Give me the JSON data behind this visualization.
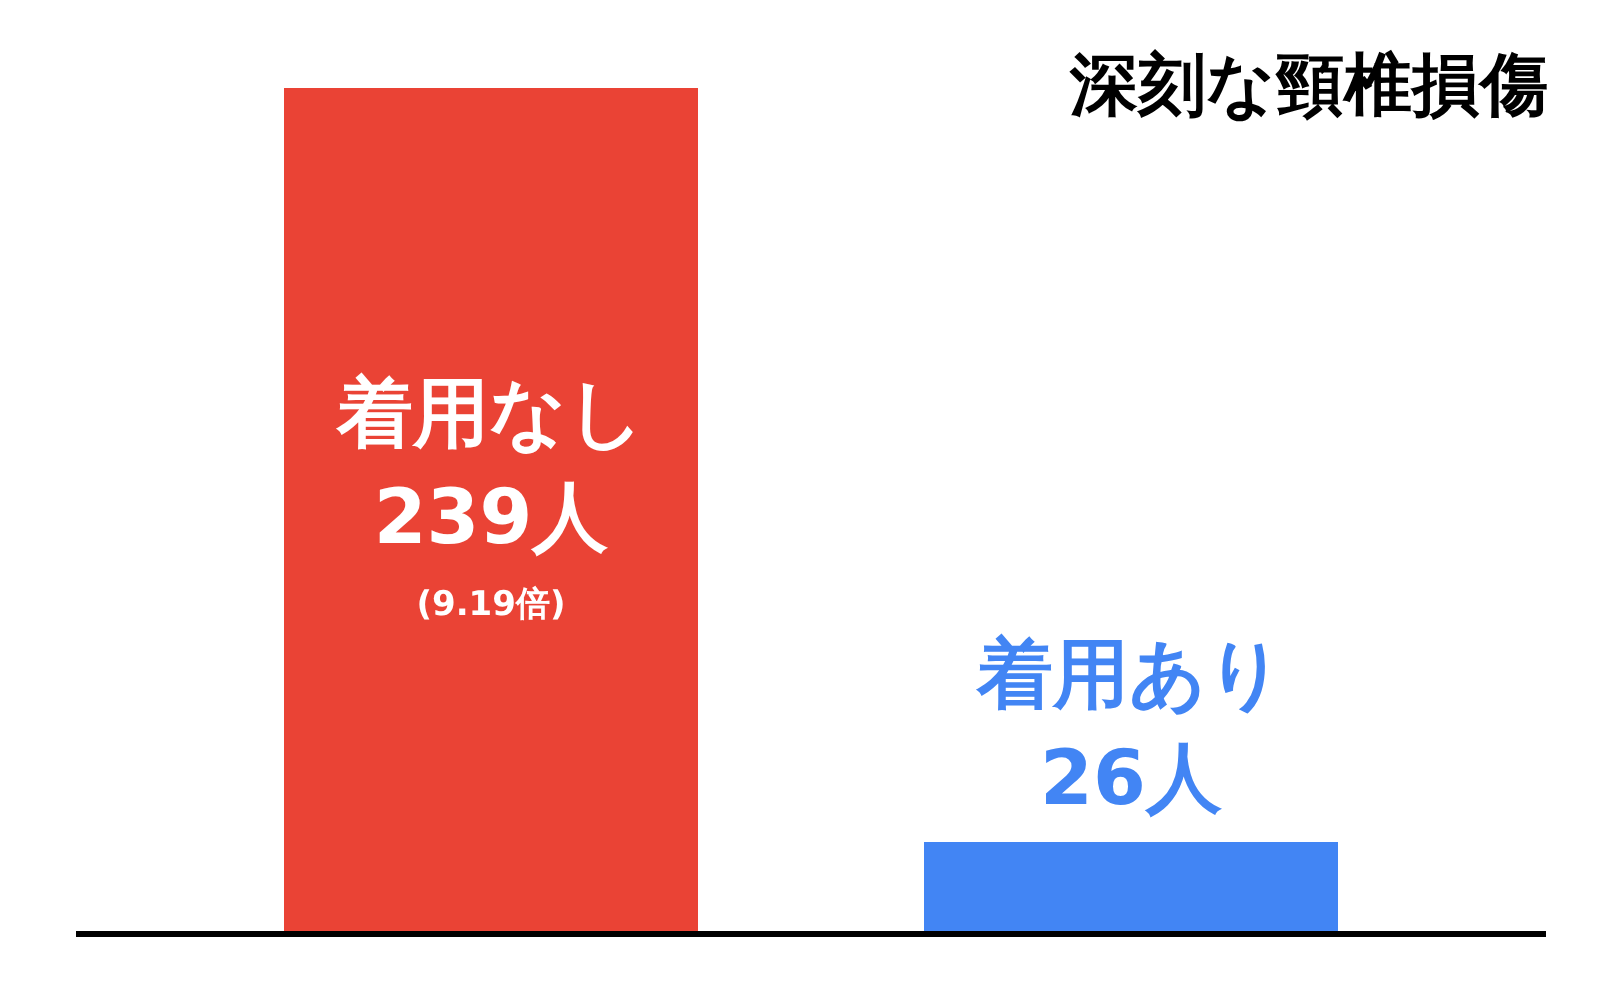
{
  "chart_data": {
    "type": "bar",
    "title": "深刻な頸椎損傷",
    "categories": [
      "着用なし",
      "着用あり"
    ],
    "values": [
      239,
      26
    ],
    "colors": [
      "#ea4335",
      "#4285f4"
    ],
    "value_labels": [
      "239人",
      "26人"
    ],
    "annotations": [
      "(9.19倍)"
    ]
  }
}
